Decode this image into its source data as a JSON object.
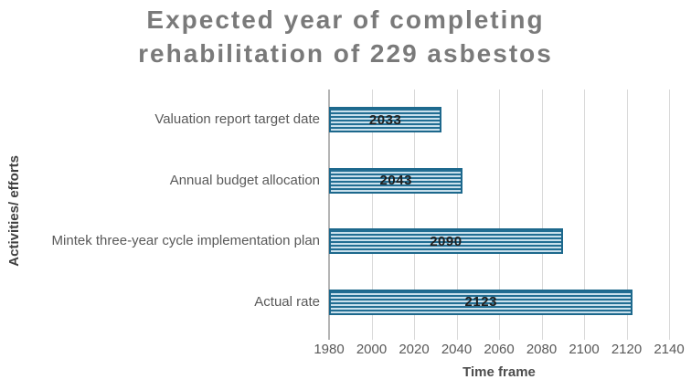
{
  "chart_data": {
    "type": "bar",
    "orientation": "horizontal",
    "title": "Expected year of completing rehabilitation of 229 asbestos",
    "xlabel": "Time frame",
    "ylabel": "Activities/ efforts",
    "categories": [
      "Valuation report target date",
      "Annual budget allocation",
      "Mintek three-year cycle implementation plan",
      "Actual rate"
    ],
    "values": [
      2033,
      2043,
      2090,
      2123
    ],
    "xlim": [
      1980,
      2140
    ],
    "xticks": [
      1980,
      2000,
      2020,
      2040,
      2060,
      2080,
      2100,
      2120,
      2140
    ],
    "grid": true,
    "legend": false,
    "colors": {
      "bar_dark": "#226e93",
      "bar_light": "#a6cde0",
      "bar_pale": "#ecf4f8",
      "bar_border": "#1d688c",
      "gridline": "#d9d9d9",
      "axis_line": "#b5b5b5",
      "title_text": "#7a7a7a",
      "label_text": "#595959",
      "value_text": "#1f1f1f"
    }
  }
}
